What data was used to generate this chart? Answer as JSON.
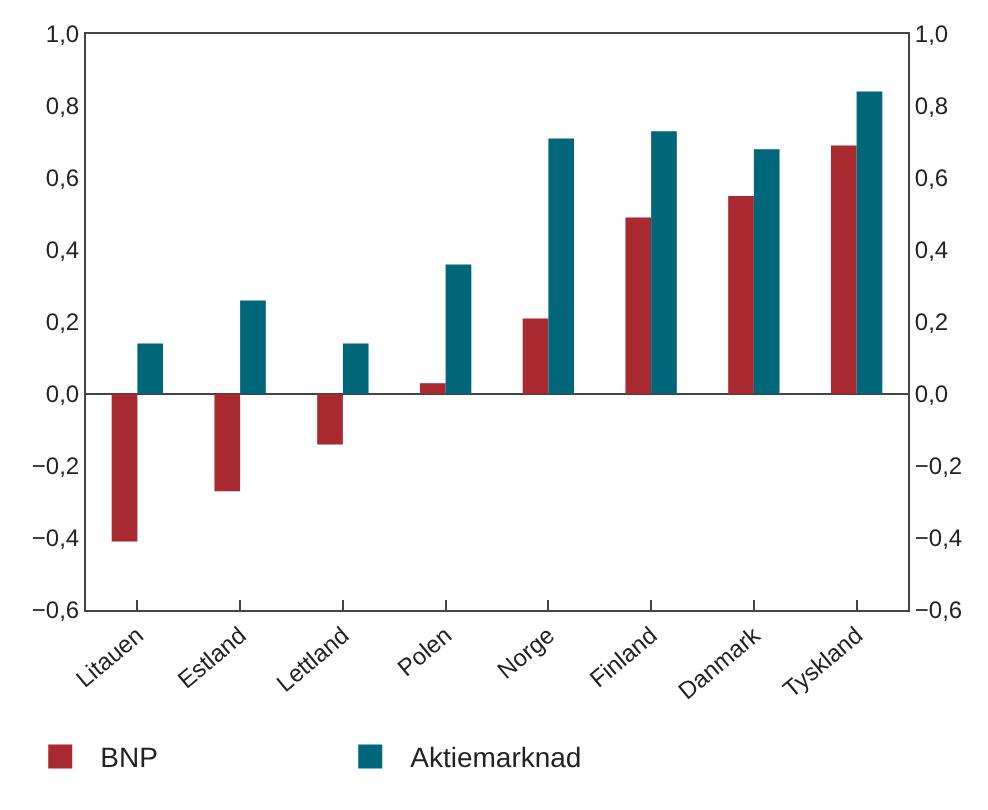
{
  "chart_data": {
    "type": "bar",
    "categories": [
      "Litauen",
      "Estland",
      "Lettland",
      "Polen",
      "Norge",
      "Finland",
      "Danmark",
      "Tyskland"
    ],
    "series": [
      {
        "name": "BNP",
        "color": "#a8292f",
        "values": [
          -0.41,
          -0.27,
          -0.14,
          0.03,
          0.21,
          0.49,
          0.55,
          0.69
        ]
      },
      {
        "name": "Aktiemarknad",
        "color": "#00667a",
        "values": [
          0.14,
          0.26,
          0.14,
          0.36,
          0.71,
          0.73,
          0.68,
          0.84
        ]
      }
    ],
    "ylim": [
      -0.6,
      1.0
    ],
    "yticks": [
      {
        "value": -0.6,
        "label": "−0,6"
      },
      {
        "value": -0.4,
        "label": "−0,4"
      },
      {
        "value": -0.2,
        "label": "−0,2"
      },
      {
        "value": 0,
        "label": "0,0"
      },
      {
        "value": 0.2,
        "label": "0,2"
      },
      {
        "value": 0.4,
        "label": "0,4"
      },
      {
        "value": 0.6,
        "label": "0,6"
      },
      {
        "value": 0.8,
        "label": "0,8"
      },
      {
        "value": 1.0,
        "label": "1,0"
      }
    ],
    "y2lim": [
      -0.6,
      1.0
    ],
    "y2ticks": [
      {
        "value": -0.6,
        "label": "−0,6"
      },
      {
        "value": -0.4,
        "label": "−0,4"
      },
      {
        "value": -0.2,
        "label": "−0,2"
      },
      {
        "value": 0,
        "label": "0,0"
      },
      {
        "value": 0.2,
        "label": "0,2"
      },
      {
        "value": 0.4,
        "label": "0,4"
      },
      {
        "value": 0.6,
        "label": "0,6"
      },
      {
        "value": 0.8,
        "label": "0,8"
      },
      {
        "value": 1.0,
        "label": "1,0"
      }
    ],
    "legend": "bottom"
  }
}
